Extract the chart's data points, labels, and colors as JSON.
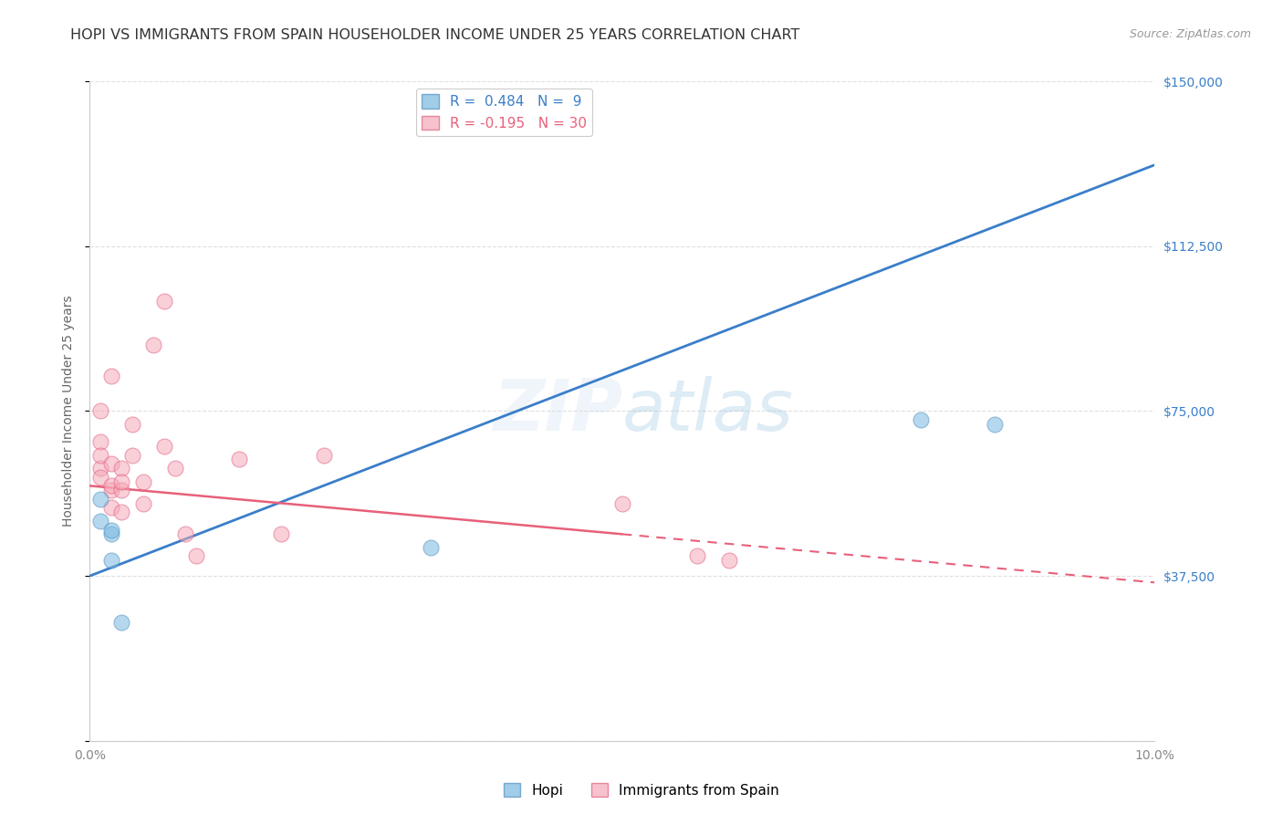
{
  "title": "HOPI VS IMMIGRANTS FROM SPAIN HOUSEHOLDER INCOME UNDER 25 YEARS CORRELATION CHART",
  "source": "Source: ZipAtlas.com",
  "ylabel": "Householder Income Under 25 years",
  "xlim": [
    0.0,
    0.1
  ],
  "ylim": [
    0,
    150000
  ],
  "yticks": [
    0,
    37500,
    75000,
    112500,
    150000
  ],
  "ytick_labels": [
    "",
    "$37,500",
    "$75,000",
    "$112,500",
    "$150,000"
  ],
  "xticks": [
    0.0,
    0.02,
    0.04,
    0.06,
    0.08,
    0.1
  ],
  "xtick_labels": [
    "0.0%",
    "",
    "",
    "",
    "",
    "10.0%"
  ],
  "hopi_x": [
    0.001,
    0.001,
    0.002,
    0.002,
    0.002,
    0.003,
    0.032,
    0.078,
    0.085
  ],
  "hopi_y": [
    55000,
    50000,
    47000,
    41000,
    48000,
    27000,
    44000,
    73000,
    72000
  ],
  "spain_x": [
    0.001,
    0.001,
    0.001,
    0.001,
    0.001,
    0.002,
    0.002,
    0.002,
    0.002,
    0.002,
    0.003,
    0.003,
    0.003,
    0.003,
    0.004,
    0.004,
    0.005,
    0.005,
    0.006,
    0.007,
    0.007,
    0.008,
    0.009,
    0.01,
    0.014,
    0.018,
    0.022,
    0.05,
    0.057,
    0.06
  ],
  "spain_y": [
    62000,
    60000,
    68000,
    65000,
    75000,
    83000,
    57000,
    63000,
    58000,
    53000,
    62000,
    57000,
    59000,
    52000,
    65000,
    72000,
    59000,
    54000,
    90000,
    100000,
    67000,
    62000,
    47000,
    42000,
    64000,
    47000,
    65000,
    54000,
    42000,
    41000
  ],
  "hopi_color": "#7ab8e0",
  "hopi_edge_color": "#5090c0",
  "spain_color": "#f5a8b8",
  "spain_edge_color": "#e06080",
  "trend_blue_color": "#3a7ec9",
  "trend_pink_color": "#e8607a",
  "r_hopi": 0.484,
  "n_hopi": 9,
  "r_spain": -0.195,
  "n_spain": 30,
  "marker_size": 150,
  "alpha": 0.55,
  "background_color": "#ffffff",
  "grid_color": "#d8d8d8",
  "title_fontsize": 11.5,
  "axis_label_fontsize": 10,
  "tick_fontsize": 10
}
